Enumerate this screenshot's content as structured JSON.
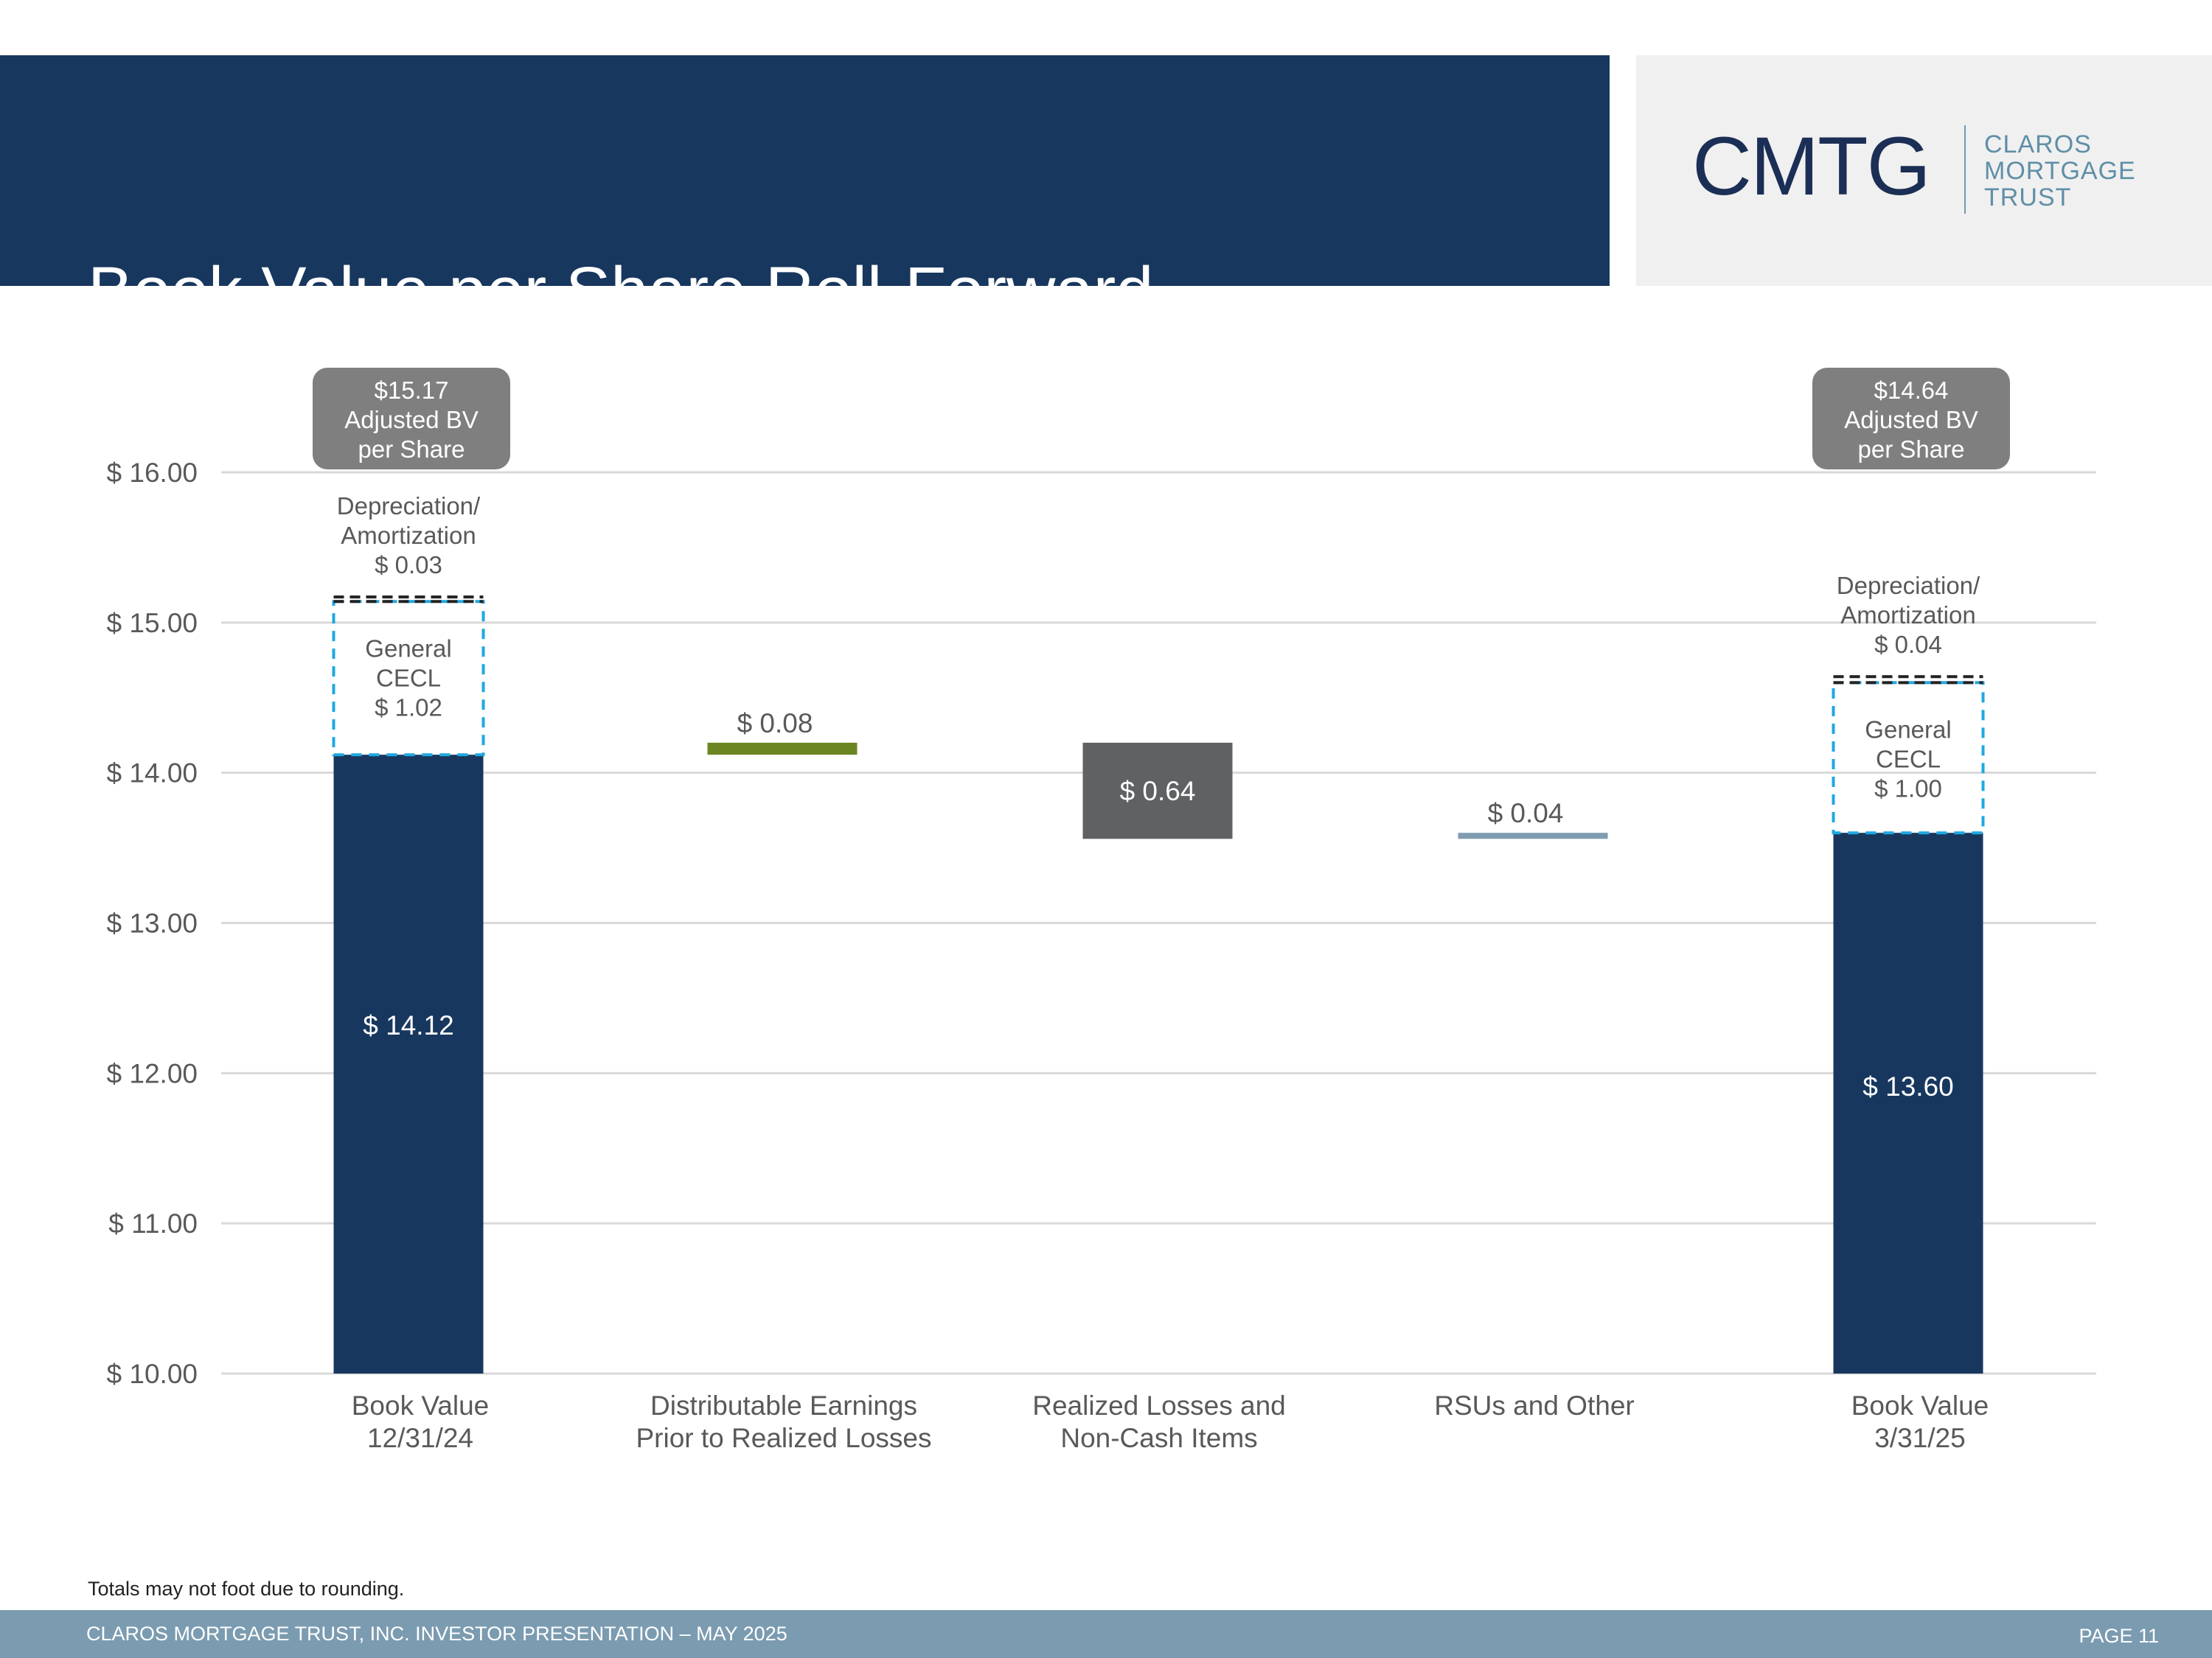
{
  "header": {
    "title": "Book Value per Share Roll-Forward"
  },
  "logo": {
    "mark": "CMTG",
    "line1": "CLAROS",
    "line2": "MORTGAGE",
    "line3": "TRUST"
  },
  "chart_data": {
    "type": "bar",
    "subtype": "waterfall",
    "title": "Book Value per Share Roll-Forward",
    "ylim": [
      10,
      16
    ],
    "yticks": [
      10,
      11,
      12,
      13,
      14,
      15,
      16
    ],
    "ytick_labels": [
      "$ 10.00",
      "$ 11.00",
      "$ 12.00",
      "$ 13.00",
      "$ 14.00",
      "$ 15.00",
      "$ 16.00"
    ],
    "grid": true,
    "categories": [
      [
        "Book Value",
        "12/31/24"
      ],
      [
        "Distributable Earnings",
        "Prior to Realized Losses"
      ],
      [
        "Realized Losses and",
        "Non-Cash Items"
      ],
      [
        "RSUs and Other"
      ],
      [
        "Book Value",
        "3/31/25"
      ]
    ],
    "bars": [
      {
        "base": 10,
        "top": 14.12,
        "label": "$ 14.12",
        "kind": "total",
        "color": "#17375e"
      },
      {
        "base": 14.12,
        "top": 14.2,
        "label": "$ 0.08",
        "kind": "increase",
        "color": "#6b8523"
      },
      {
        "base": 13.56,
        "top": 14.2,
        "label": "$ 0.64",
        "kind": "decrease",
        "color": "#5f6163"
      },
      {
        "base": 13.56,
        "top": 13.6,
        "label": "$ 0.04",
        "kind": "increase",
        "color": "#7f9cb0"
      },
      {
        "base": 10,
        "top": 13.6,
        "label": "$ 13.60",
        "kind": "total",
        "color": "#17375e"
      }
    ],
    "overlays": [
      {
        "bar": 0,
        "cecl": {
          "base": 14.12,
          "top": 15.14,
          "lines": [
            "General",
            "CECL",
            "$ 1.02"
          ]
        },
        "dep": {
          "base": 15.14,
          "top": 15.17,
          "lines": [
            "Depreciation/",
            "Amortization",
            "$ 0.03"
          ]
        },
        "callout": [
          "$15.17",
          "Adjusted BV",
          "per Share"
        ]
      },
      {
        "bar": 4,
        "cecl": {
          "base": 13.6,
          "top": 14.6,
          "lines": [
            "General",
            "CECL",
            "$ 1.00"
          ]
        },
        "dep": {
          "base": 14.6,
          "top": 14.64,
          "lines": [
            "Depreciation/",
            "Amortization",
            "$ 0.04"
          ]
        },
        "callout": [
          "$14.64",
          "Adjusted BV",
          "per Share"
        ]
      }
    ]
  },
  "note": "Totals may not foot due to rounding.",
  "footer": {
    "text": "CLAROS MORTGAGE TRUST, INC. INVESTOR PRESENTATION – MAY 2025",
    "page": "PAGE 11"
  }
}
